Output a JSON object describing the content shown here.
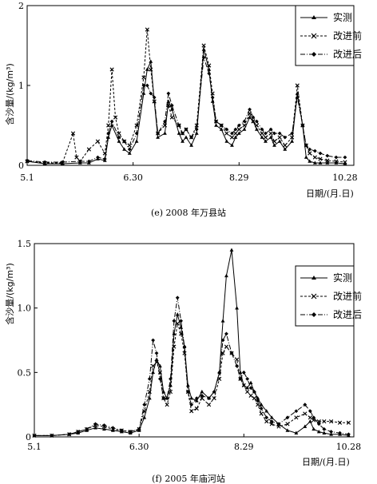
{
  "chart_data": [
    {
      "type": "line",
      "caption": "(e) 2008 年万县站",
      "ylabel": "含沙量/(kg/m³)",
      "xlabel": "日期/(月.日)",
      "ylim": [
        0,
        2
      ],
      "yticks": [
        "0",
        "1",
        "2"
      ],
      "xticks": [
        {
          "day": 0,
          "label": "5.1"
        },
        {
          "day": 60,
          "label": "6.30"
        },
        {
          "day": 120,
          "label": "8.29"
        },
        {
          "day": 180,
          "label": "10.28"
        }
      ],
      "legend_position": "top-right",
      "series": [
        {
          "name": "实测",
          "style": "solid-triangle",
          "x": [
            0,
            10,
            20,
            30,
            35,
            40,
            44,
            46,
            48,
            52,
            55,
            58,
            62,
            66,
            68,
            70,
            72,
            74,
            78,
            80,
            82,
            86,
            88,
            90,
            93,
            96,
            100,
            103,
            105,
            107,
            110,
            113,
            116,
            118,
            120,
            123,
            126,
            128,
            130,
            133,
            135,
            138,
            140,
            143,
            146,
            150,
            153,
            156,
            158,
            160,
            163,
            166,
            170,
            175,
            180
          ],
          "y": [
            0.05,
            0.02,
            0.02,
            0.03,
            0.03,
            0.08,
            0.06,
            0.35,
            0.5,
            0.3,
            0.2,
            0.15,
            0.3,
            0.9,
            1.2,
            1.3,
            0.8,
            0.35,
            0.4,
            0.8,
            0.7,
            0.4,
            0.3,
            0.35,
            0.25,
            0.4,
            1.45,
            1.2,
            0.8,
            0.5,
            0.45,
            0.3,
            0.25,
            0.35,
            0.4,
            0.45,
            0.6,
            0.55,
            0.45,
            0.35,
            0.3,
            0.35,
            0.25,
            0.3,
            0.2,
            0.3,
            0.9,
            0.5,
            0.1,
            0.05,
            0.03,
            0.03,
            0.03,
            0.03,
            0.02
          ]
        },
        {
          "name": "改进前",
          "style": "dashed-x",
          "x": [
            0,
            10,
            20,
            26,
            28,
            30,
            35,
            40,
            44,
            46,
            48,
            50,
            52,
            55,
            58,
            62,
            66,
            68,
            70,
            72,
            74,
            78,
            80,
            82,
            86,
            88,
            90,
            93,
            96,
            100,
            103,
            105,
            107,
            110,
            113,
            116,
            118,
            120,
            123,
            126,
            128,
            130,
            133,
            135,
            138,
            140,
            143,
            146,
            150,
            153,
            156,
            158,
            160,
            163,
            166,
            170,
            175,
            180
          ],
          "y": [
            0.05,
            0.03,
            0.03,
            0.4,
            0.1,
            0.05,
            0.2,
            0.3,
            0.15,
            0.5,
            1.2,
            0.6,
            0.4,
            0.3,
            0.25,
            0.5,
            1.1,
            1.7,
            1.2,
            0.8,
            0.4,
            0.5,
            0.75,
            0.6,
            0.5,
            0.4,
            0.45,
            0.35,
            0.5,
            1.5,
            1.25,
            0.9,
            0.55,
            0.5,
            0.4,
            0.35,
            0.4,
            0.45,
            0.5,
            0.65,
            0.55,
            0.5,
            0.4,
            0.35,
            0.4,
            0.3,
            0.35,
            0.25,
            0.35,
            1.0,
            0.5,
            0.25,
            0.15,
            0.1,
            0.08,
            0.06,
            0.05,
            0.04
          ]
        },
        {
          "name": "改进后",
          "style": "dashdot-diamond",
          "x": [
            0,
            10,
            20,
            30,
            35,
            40,
            44,
            46,
            48,
            52,
            55,
            58,
            62,
            66,
            68,
            70,
            72,
            74,
            78,
            80,
            82,
            86,
            88,
            90,
            93,
            96,
            100,
            103,
            105,
            107,
            110,
            113,
            116,
            118,
            120,
            123,
            126,
            128,
            130,
            133,
            135,
            138,
            140,
            143,
            146,
            150,
            153,
            156,
            158,
            160,
            163,
            166,
            170,
            175,
            180
          ],
          "y": [
            0.06,
            0.04,
            0.04,
            0.05,
            0.05,
            0.1,
            0.08,
            0.4,
            0.55,
            0.35,
            0.3,
            0.2,
            0.4,
            1.0,
            1.0,
            0.9,
            0.85,
            0.4,
            0.55,
            0.9,
            0.75,
            0.5,
            0.4,
            0.45,
            0.35,
            0.45,
            1.35,
            1.15,
            0.85,
            0.55,
            0.5,
            0.45,
            0.4,
            0.45,
            0.5,
            0.55,
            0.7,
            0.6,
            0.55,
            0.45,
            0.4,
            0.45,
            0.4,
            0.4,
            0.35,
            0.4,
            0.85,
            0.5,
            0.25,
            0.2,
            0.18,
            0.15,
            0.12,
            0.1,
            0.1
          ]
        }
      ]
    },
    {
      "type": "line",
      "caption": "(f) 2005 年庙河站",
      "ylabel": "含沙量/(kg/m³)",
      "xlabel": "日期/(月.日)",
      "ylim": [
        0,
        1.5
      ],
      "yticks": [
        "0",
        "0.5",
        "1.0",
        "1.5"
      ],
      "xticks": [
        {
          "day": 0,
          "label": "5.1"
        },
        {
          "day": 60,
          "label": "6.30"
        },
        {
          "day": 120,
          "label": "8.29"
        },
        {
          "day": 180,
          "label": "10.28"
        }
      ],
      "legend_position": "top-right",
      "series": [
        {
          "name": "实测",
          "style": "solid-triangle",
          "x": [
            0,
            10,
            20,
            25,
            30,
            35,
            40,
            45,
            50,
            55,
            60,
            63,
            66,
            68,
            70,
            72,
            74,
            76,
            78,
            80,
            82,
            84,
            86,
            88,
            90,
            93,
            96,
            100,
            103,
            106,
            108,
            110,
            113,
            116,
            118,
            120,
            122,
            124,
            126,
            128,
            130,
            133,
            136,
            140,
            145,
            150,
            155,
            158,
            160,
            163,
            166,
            170,
            175,
            180
          ],
          "y": [
            0.01,
            0.01,
            0.02,
            0.03,
            0.05,
            0.07,
            0.06,
            0.05,
            0.04,
            0.03,
            0.05,
            0.15,
            0.3,
            0.5,
            0.6,
            0.55,
            0.35,
            0.3,
            0.4,
            0.8,
            0.95,
            0.85,
            0.7,
            0.4,
            0.3,
            0.28,
            0.35,
            0.3,
            0.35,
            0.5,
            0.9,
            1.25,
            1.45,
            1.0,
            0.5,
            0.4,
            0.38,
            0.42,
            0.35,
            0.3,
            0.25,
            0.2,
            0.15,
            0.1,
            0.05,
            0.03,
            0.08,
            0.12,
            0.06,
            0.04,
            0.03,
            0.02,
            0.02,
            0.01
          ]
        },
        {
          "name": "改进前",
          "style": "dashed-x",
          "x": [
            0,
            10,
            20,
            25,
            30,
            35,
            40,
            45,
            50,
            55,
            60,
            63,
            66,
            68,
            70,
            72,
            74,
            76,
            78,
            80,
            82,
            84,
            86,
            88,
            90,
            93,
            96,
            100,
            103,
            106,
            108,
            110,
            113,
            116,
            118,
            120,
            122,
            124,
            126,
            128,
            130,
            133,
            136,
            140,
            145,
            150,
            155,
            158,
            160,
            163,
            166,
            170,
            175,
            180
          ],
          "y": [
            0.01,
            0.01,
            0.02,
            0.04,
            0.06,
            0.09,
            0.08,
            0.06,
            0.05,
            0.04,
            0.06,
            0.2,
            0.35,
            0.55,
            0.58,
            0.5,
            0.3,
            0.25,
            0.35,
            0.7,
            0.88,
            0.8,
            0.65,
            0.35,
            0.2,
            0.22,
            0.3,
            0.25,
            0.3,
            0.45,
            0.65,
            0.7,
            0.65,
            0.6,
            0.45,
            0.4,
            0.35,
            0.32,
            0.3,
            0.25,
            0.18,
            0.12,
            0.1,
            0.08,
            0.1,
            0.15,
            0.18,
            0.15,
            0.13,
            0.12,
            0.12,
            0.12,
            0.11,
            0.11
          ]
        },
        {
          "name": "改进后",
          "style": "dashdot-diamond",
          "x": [
            0,
            10,
            20,
            25,
            30,
            35,
            40,
            45,
            50,
            55,
            60,
            63,
            66,
            68,
            70,
            72,
            74,
            76,
            78,
            80,
            82,
            84,
            86,
            88,
            90,
            93,
            96,
            100,
            103,
            106,
            108,
            110,
            113,
            116,
            118,
            120,
            122,
            124,
            126,
            128,
            130,
            133,
            136,
            140,
            145,
            150,
            155,
            158,
            160,
            163,
            166,
            170,
            175,
            180
          ],
          "y": [
            0.01,
            0.01,
            0.02,
            0.04,
            0.06,
            0.1,
            0.09,
            0.07,
            0.05,
            0.04,
            0.06,
            0.25,
            0.45,
            0.75,
            0.65,
            0.45,
            0.3,
            0.3,
            0.45,
            0.9,
            1.08,
            0.9,
            0.7,
            0.35,
            0.25,
            0.3,
            0.32,
            0.3,
            0.35,
            0.5,
            0.75,
            0.8,
            0.65,
            0.55,
            0.45,
            0.5,
            0.45,
            0.38,
            0.35,
            0.28,
            0.22,
            0.15,
            0.12,
            0.1,
            0.15,
            0.2,
            0.25,
            0.2,
            0.15,
            0.1,
            0.06,
            0.04,
            0.03,
            0.02
          ]
        }
      ]
    }
  ]
}
